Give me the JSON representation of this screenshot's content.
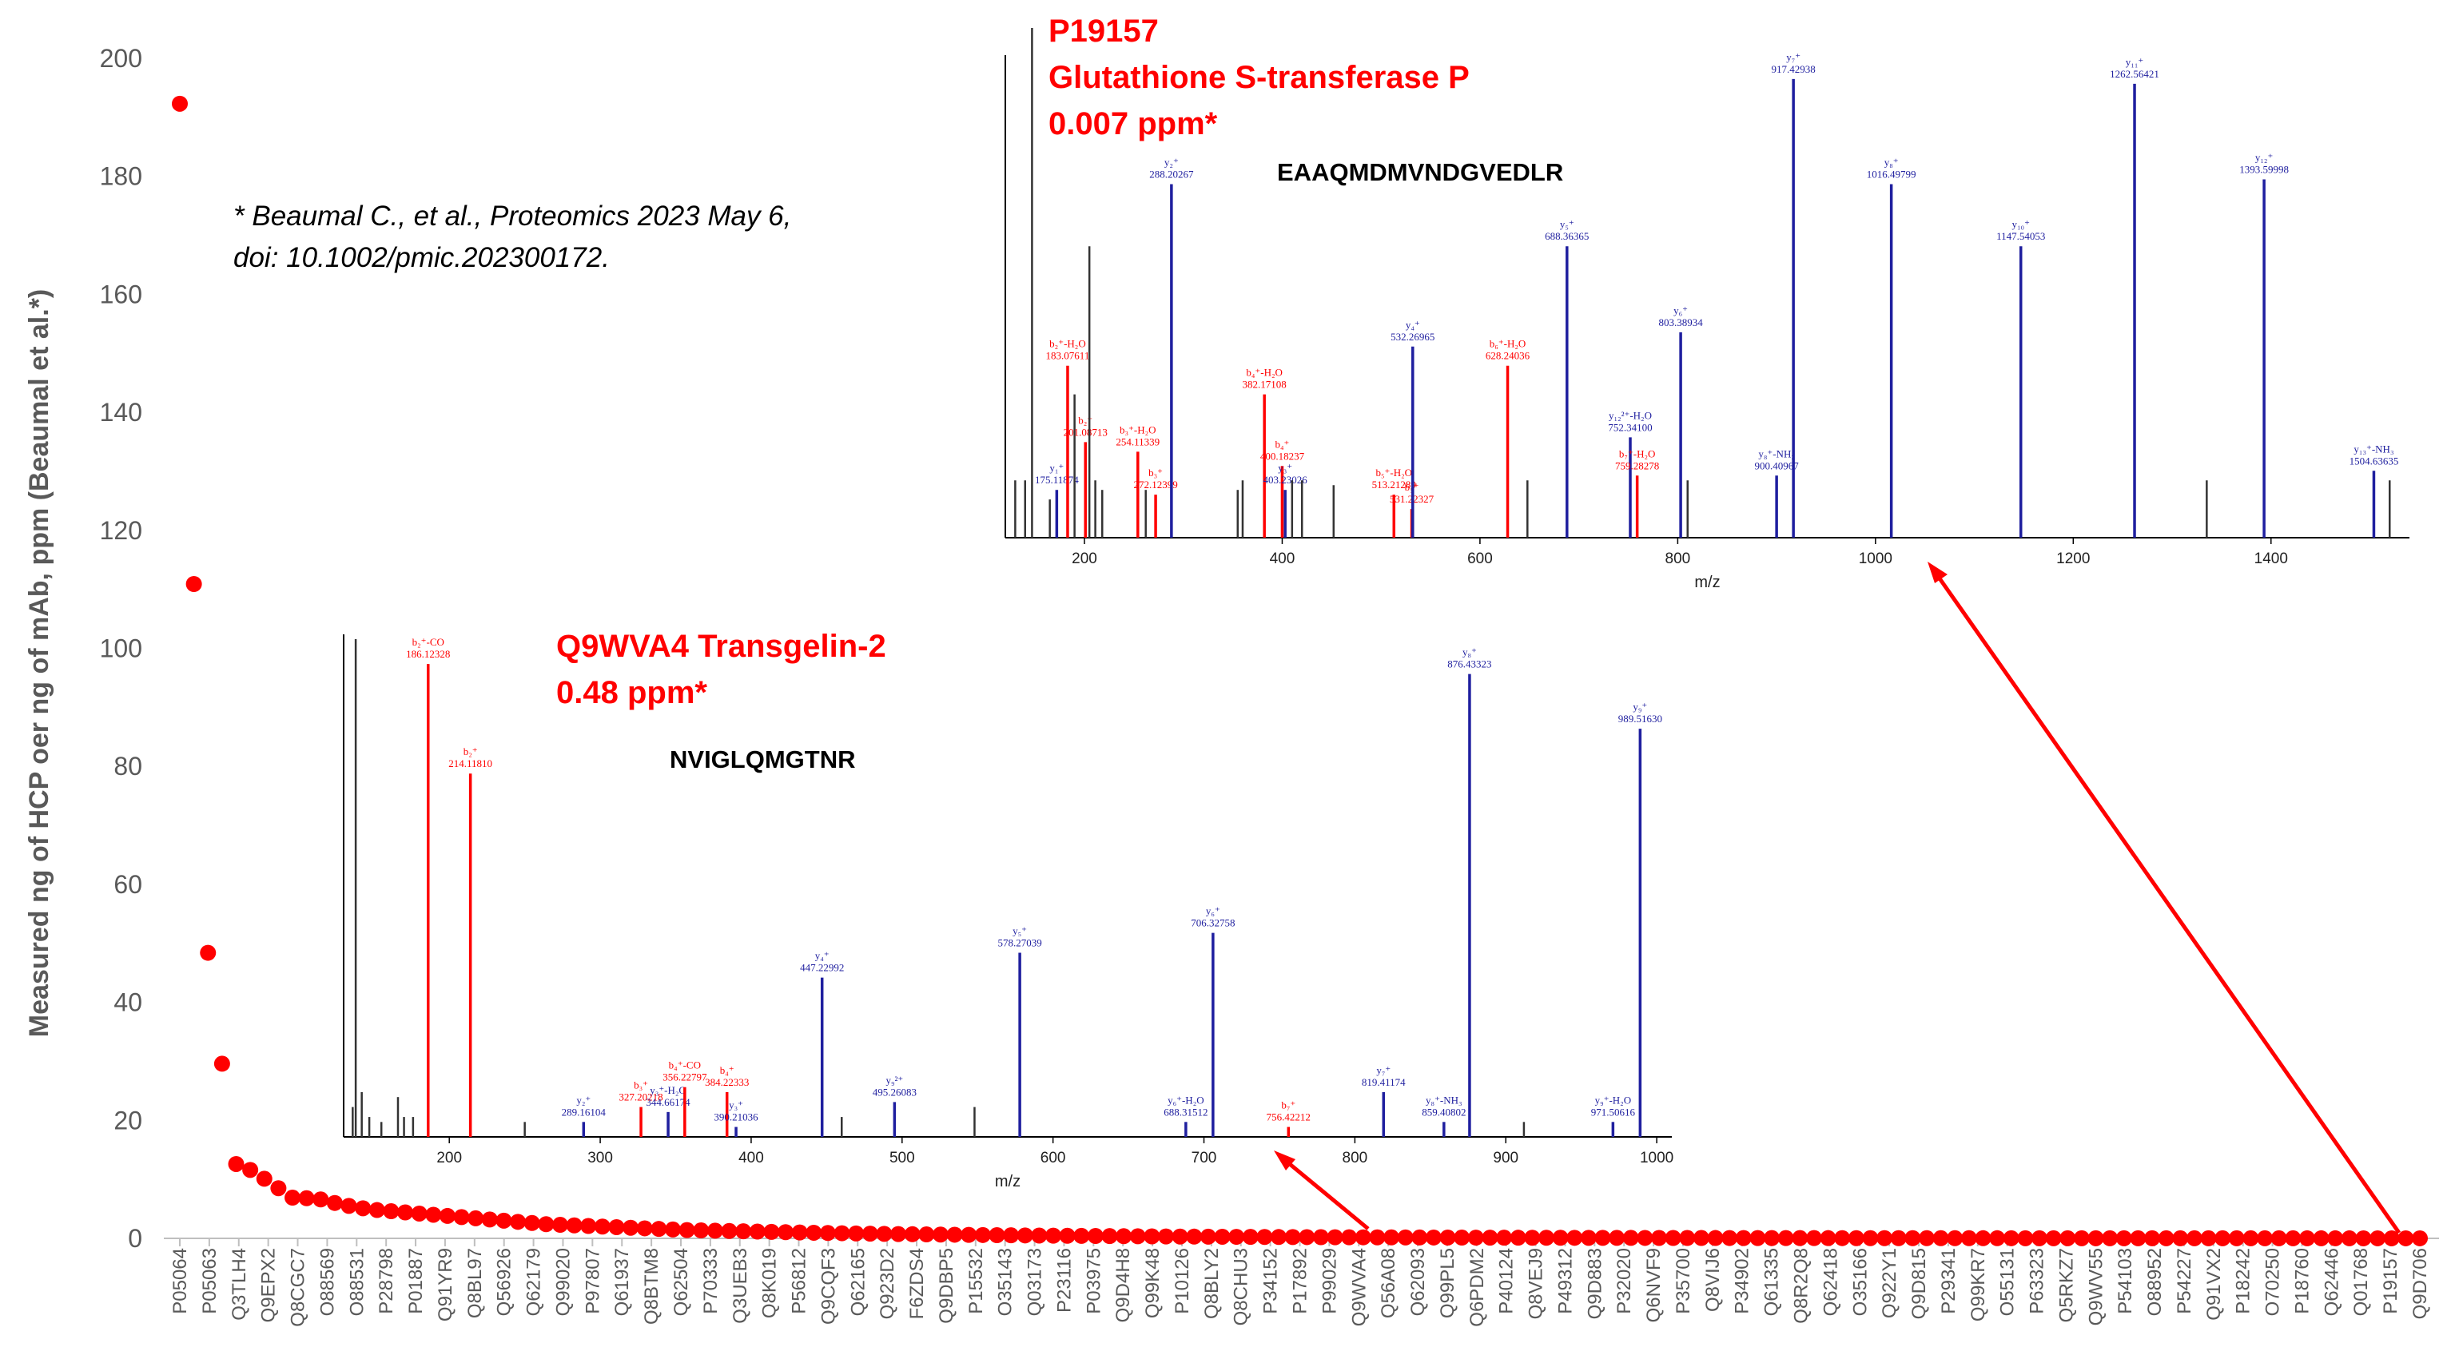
{
  "chart_data": [
    {
      "type": "scatter",
      "ylabel": "Measured ng of HCP oer ng of mAb, ppm (Beaumal et al.*)",
      "xlabel": "",
      "ylim": [
        0,
        200
      ],
      "yticks": [
        0,
        20,
        40,
        60,
        80,
        100,
        120,
        140,
        160,
        180,
        200
      ],
      "grid": false,
      "marker_color": "#ff0000",
      "point_count": 160,
      "leading_values": [
        192.3,
        110.9,
        48.4,
        29.6,
        12.6,
        11.6,
        10.1,
        8.5,
        6.9,
        6.8,
        6.6,
        6.0,
        5.5,
        5.1,
        4.8,
        4.6,
        4.4,
        4.2,
        4.0,
        3.8,
        3.6,
        3.4,
        3.2,
        3.0,
        2.8,
        2.6,
        2.4,
        2.3,
        2.2,
        2.1,
        2.0,
        1.9,
        1.8,
        1.7,
        1.6,
        1.5,
        1.4,
        1.35,
        1.3,
        1.25,
        1.2,
        1.15,
        1.1,
        1.05,
        1.0
      ],
      "tail_start": 0.95,
      "tail_end": 0.007,
      "categories": [
        "P05064",
        "P05063",
        "Q3TLH4",
        "Q9EPX2",
        "Q8CGC7",
        "O88569",
        "O88531",
        "P28798",
        "P01887",
        "Q91YR9",
        "Q8BL97",
        "Q56926",
        "Q62179",
        "Q99020",
        "P97807",
        "Q61937",
        "Q8BTM8",
        "Q62504",
        "P70333",
        "Q3UEB3",
        "Q8K019",
        "P56812",
        "Q9CQF3",
        "Q62165",
        "Q923D2",
        "F6ZDS4",
        "Q9DBP5",
        "P15532",
        "O35143",
        "Q03173",
        "P23116",
        "P03975",
        "Q9D4H8",
        "Q99K48",
        "P10126",
        "Q8BLY2",
        "Q8CHU3",
        "P34152",
        "P17892",
        "P99029",
        "Q9WVA4",
        "Q56A08",
        "Q62093",
        "Q99PL5",
        "Q6PDM2",
        "P40124",
        "Q8VEJ9",
        "P49312",
        "Q9D883",
        "P32020",
        "Q6NVF9",
        "P35700",
        "Q8VIJ6",
        "P34902",
        "Q61335",
        "Q8R2Q8",
        "Q62418",
        "O35166",
        "Q922Y1",
        "Q9D815",
        "P29341",
        "Q99KR7",
        "O55131",
        "P63323",
        "Q5RKZ7",
        "Q9WV55",
        "P54103",
        "O88952",
        "P54227",
        "Q91VX2",
        "P18242",
        "O70250",
        "P18760",
        "Q62446",
        "Q01768",
        "P19157",
        "Q9D706"
      ],
      "annotations": [
        {
          "text": "* Beaumal C., et al., Proteomics 2023 May 6,",
          "color": "#000000"
        },
        {
          "text": "doi: 10.1002/pmic.202300172.",
          "color": "#000000"
        }
      ]
    },
    {
      "type": "bar",
      "label_lines": [
        "P19157",
        "Glutathione S-transferase P",
        "0.007 ppm*"
      ],
      "peptide": "EAAQMDMVNDGVEDLR",
      "xlabel": "m/z",
      "xlim": [
        120,
        1540
      ],
      "xticks": [
        200,
        400,
        600,
        800,
        1000,
        1200,
        1400
      ],
      "colors": {
        "b": "#ff0000",
        "y": "#1f1f9f",
        "other": "#333333"
      },
      "peaks": [
        {
          "mz": 130,
          "h": 12,
          "c": "k"
        },
        {
          "mz": 140,
          "h": 12,
          "c": "k"
        },
        {
          "mz": 147,
          "h": 114,
          "c": "k",
          "note": "off-scale precursor peak"
        },
        {
          "mz": 165,
          "h": 8,
          "c": "k"
        },
        {
          "mz": 172,
          "h": 10,
          "c": "y",
          "label": [
            "y₁⁺",
            "175.11874"
          ]
        },
        {
          "mz": 183,
          "h": 36,
          "c": "b",
          "label": [
            "b₂⁺-H₂O",
            "183.07611"
          ]
        },
        {
          "mz": 190,
          "h": 30,
          "c": "k"
        },
        {
          "mz": 201,
          "h": 20,
          "c": "b",
          "label": [
            "b₂⁺",
            "201.08713"
          ]
        },
        {
          "mz": 205,
          "h": 61,
          "c": "k"
        },
        {
          "mz": 211,
          "h": 12,
          "c": "k"
        },
        {
          "mz": 218,
          "h": 10,
          "c": "k"
        },
        {
          "mz": 254,
          "h": 18,
          "c": "b",
          "label": [
            "b₃⁺-H₂O",
            "254.11339"
          ]
        },
        {
          "mz": 262,
          "h": 10,
          "c": "k"
        },
        {
          "mz": 272,
          "h": 9,
          "c": "b",
          "label": [
            "b₃⁺",
            "272.12399"
          ]
        },
        {
          "mz": 288,
          "h": 74,
          "c": "y",
          "label": [
            "y₂⁺",
            "288.20267"
          ]
        },
        {
          "mz": 355,
          "h": 10,
          "c": "k"
        },
        {
          "mz": 360,
          "h": 12,
          "c": "k"
        },
        {
          "mz": 382,
          "h": 30,
          "c": "b",
          "label": [
            "b₄⁺-H₂O",
            "382.17108"
          ]
        },
        {
          "mz": 400,
          "h": 15,
          "c": "b",
          "label": [
            "b₄⁺",
            "400.18237"
          ]
        },
        {
          "mz": 403,
          "h": 10,
          "c": "y",
          "label": [
            "y₃⁺",
            "403.23026"
          ]
        },
        {
          "mz": 410,
          "h": 12,
          "c": "k"
        },
        {
          "mz": 420,
          "h": 12,
          "c": "k"
        },
        {
          "mz": 452,
          "h": 11,
          "c": "k"
        },
        {
          "mz": 513,
          "h": 9,
          "c": "b",
          "label": [
            "b₅⁺-H₂O",
            "513.21289"
          ]
        },
        {
          "mz": 531,
          "h": 6,
          "c": "b",
          "label": [
            "b₅⁺",
            "531.22327"
          ]
        },
        {
          "mz": 532,
          "h": 40,
          "c": "y",
          "label": [
            "y₄⁺",
            "532.26965"
          ]
        },
        {
          "mz": 628,
          "h": 36,
          "c": "b",
          "label": [
            "b₆⁺-H₂O",
            "628.24036"
          ]
        },
        {
          "mz": 648,
          "h": 12,
          "c": "k"
        },
        {
          "mz": 688,
          "h": 61,
          "c": "y",
          "label": [
            "y₅⁺",
            "688.36365"
          ]
        },
        {
          "mz": 752,
          "h": 21,
          "c": "y",
          "label": [
            "y₁₂²⁺-H₂O",
            "752.34100"
          ]
        },
        {
          "mz": 759,
          "h": 13,
          "c": "b",
          "label": [
            "b₇⁺-H₂O",
            "759.28278"
          ]
        },
        {
          "mz": 803,
          "h": 43,
          "c": "y",
          "label": [
            "y₆⁺",
            "803.38934"
          ]
        },
        {
          "mz": 810,
          "h": 12,
          "c": "k"
        },
        {
          "mz": 900,
          "h": 13,
          "c": "y",
          "label": [
            "y₈⁺-NH₃",
            "900.40967"
          ]
        },
        {
          "mz": 917,
          "h": 96,
          "c": "y",
          "label": [
            "y₇⁺",
            "917.42938"
          ]
        },
        {
          "mz": 1016,
          "h": 74,
          "c": "y",
          "label": [
            "y₈⁺",
            "1016.49799"
          ]
        },
        {
          "mz": 1147,
          "h": 61,
          "c": "y",
          "label": [
            "y₁₀⁺",
            "1147.54053"
          ]
        },
        {
          "mz": 1262,
          "h": 95,
          "c": "y",
          "label": [
            "y₁₁⁺",
            "1262.56421"
          ]
        },
        {
          "mz": 1335,
          "h": 12,
          "c": "k"
        },
        {
          "mz": 1393,
          "h": 75,
          "c": "y",
          "label": [
            "y₁₂⁺",
            "1393.59998"
          ]
        },
        {
          "mz": 1504,
          "h": 14,
          "c": "y",
          "label": [
            "y₁₃⁺-NH₃",
            "1504.63635"
          ]
        },
        {
          "mz": 1520,
          "h": 12,
          "c": "k"
        }
      ]
    },
    {
      "type": "bar",
      "label_lines": [
        "Q9WVA4 Transgelin-2",
        "0.48 ppm*"
      ],
      "peptide": "NVIGLQMGTNR",
      "xlabel": "m/z",
      "xlim": [
        130,
        1010
      ],
      "xticks": [
        200,
        300,
        400,
        500,
        600,
        700,
        800,
        900,
        1000
      ],
      "colors": {
        "b": "#ff0000",
        "y": "#1f1f9f",
        "other": "#333333"
      },
      "peaks": [
        {
          "mz": 136,
          "h": 6,
          "c": "k"
        },
        {
          "mz": 138,
          "h": 100,
          "c": "k",
          "note": "off-scale precursor peak"
        },
        {
          "mz": 142,
          "h": 9,
          "c": "k"
        },
        {
          "mz": 147,
          "h": 4,
          "c": "k"
        },
        {
          "mz": 155,
          "h": 3,
          "c": "k"
        },
        {
          "mz": 166,
          "h": 8,
          "c": "k"
        },
        {
          "mz": 170,
          "h": 4,
          "c": "k"
        },
        {
          "mz": 176,
          "h": 4,
          "c": "k"
        },
        {
          "mz": 186,
          "h": 95,
          "c": "b",
          "label": [
            "b₂⁺-CO",
            "186.12328"
          ]
        },
        {
          "mz": 214,
          "h": 73,
          "c": "b",
          "label": [
            "b₂⁺",
            "214.11810"
          ]
        },
        {
          "mz": 250,
          "h": 3,
          "c": "k"
        },
        {
          "mz": 289,
          "h": 3,
          "c": "y",
          "label": [
            "y₂⁺",
            "289.16104"
          ]
        },
        {
          "mz": 327,
          "h": 6,
          "c": "b",
          "label": [
            "b₃⁺",
            "327.20218"
          ]
        },
        {
          "mz": 345,
          "h": 5,
          "c": "y",
          "label": [
            "y₃⁺-H₂O",
            "344.66174"
          ]
        },
        {
          "mz": 356,
          "h": 10,
          "c": "b",
          "label": [
            "b₄⁺-CO",
            "356.22797"
          ]
        },
        {
          "mz": 384,
          "h": 9,
          "c": "b",
          "label": [
            "b₄⁺",
            "384.22333"
          ]
        },
        {
          "mz": 390,
          "h": 2,
          "c": "y",
          "label": [
            "y₃⁺",
            "390.21036"
          ]
        },
        {
          "mz": 447,
          "h": 32,
          "c": "y",
          "label": [
            "y₄⁺",
            "447.22992"
          ]
        },
        {
          "mz": 460,
          "h": 4,
          "c": "k"
        },
        {
          "mz": 495,
          "h": 7,
          "c": "y",
          "label": [
            "y₉²⁺",
            "495.26083"
          ]
        },
        {
          "mz": 548,
          "h": 6,
          "c": "k"
        },
        {
          "mz": 578,
          "h": 37,
          "c": "y",
          "label": [
            "y₅⁺",
            "578.27039"
          ]
        },
        {
          "mz": 688,
          "h": 3,
          "c": "y",
          "label": [
            "y₆⁺-H₂O",
            "688.31512"
          ]
        },
        {
          "mz": 706,
          "h": 41,
          "c": "y",
          "label": [
            "y₆⁺",
            "706.32758"
          ]
        },
        {
          "mz": 756,
          "h": 2,
          "c": "b",
          "label": [
            "b₇⁺",
            "756.42212"
          ]
        },
        {
          "mz": 819,
          "h": 9,
          "c": "y",
          "label": [
            "y₇⁺",
            "819.41174"
          ]
        },
        {
          "mz": 859,
          "h": 3,
          "c": "y",
          "label": [
            "y₈⁺-NH₃",
            "859.40802"
          ]
        },
        {
          "mz": 876,
          "h": 93,
          "c": "y",
          "label": [
            "y₈⁺",
            "876.43323"
          ]
        },
        {
          "mz": 912,
          "h": 3,
          "c": "k"
        },
        {
          "mz": 971,
          "h": 3,
          "c": "y",
          "label": [
            "y₉⁺-H₂O",
            "971.50616"
          ]
        },
        {
          "mz": 989,
          "h": 82,
          "c": "y",
          "label": [
            "y₉⁺",
            "989.51630"
          ]
        }
      ]
    }
  ]
}
